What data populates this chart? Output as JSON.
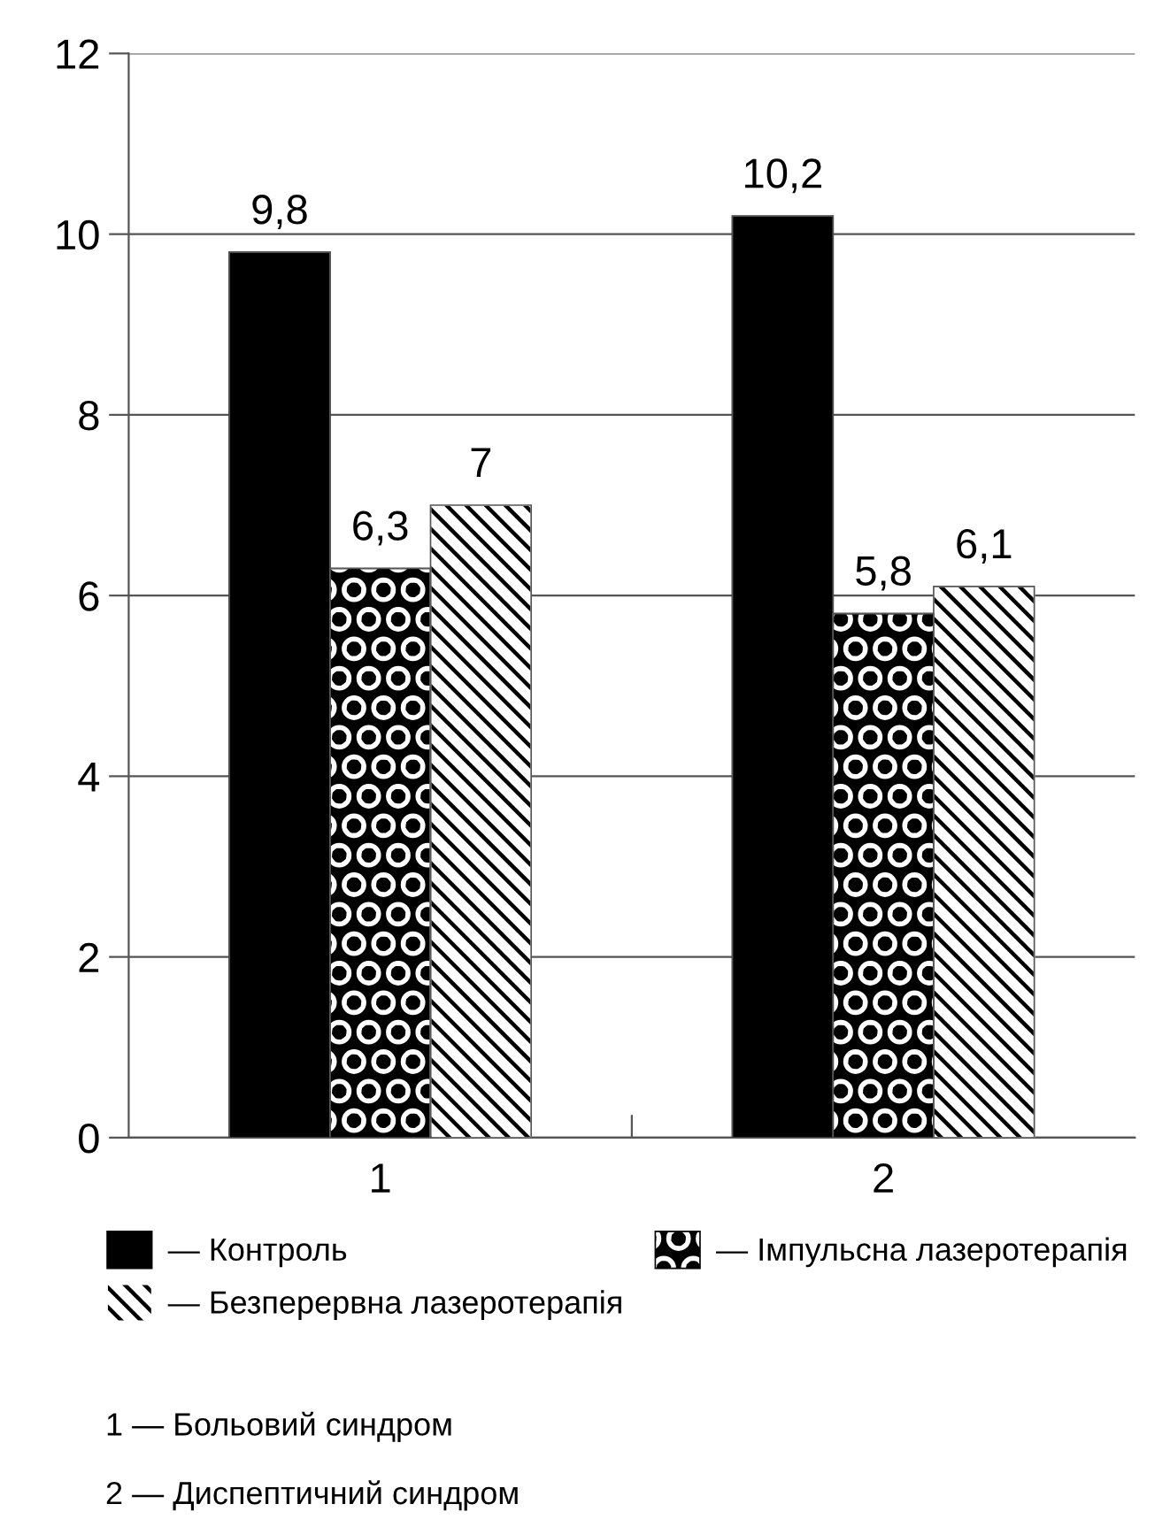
{
  "chart_data": {
    "type": "bar",
    "categories": [
      "1",
      "2"
    ],
    "series": [
      {
        "name": "— Контроль",
        "color": "#000000",
        "values": [
          9.8,
          10.2
        ],
        "value_labels": [
          "9,8",
          "10,2"
        ]
      },
      {
        "name": "— Імпульсна лазеротерапія",
        "color": "#000000",
        "values": [
          6.3,
          5.8
        ],
        "value_labels": [
          "6,3",
          "5,8"
        ]
      },
      {
        "name": "— Безперервна лазеротерапія",
        "color": "#ffffff",
        "values": [
          7,
          6.1
        ],
        "value_labels": [
          "7",
          "6,1"
        ]
      }
    ],
    "ylim": [
      0,
      12
    ],
    "yticks": [
      0,
      2,
      4,
      6,
      8,
      10,
      12
    ],
    "grid": "y",
    "legend": "bottom",
    "annotations": [
      "1 — Больовий синдром",
      "2 — Диспептичний синдром"
    ]
  }
}
